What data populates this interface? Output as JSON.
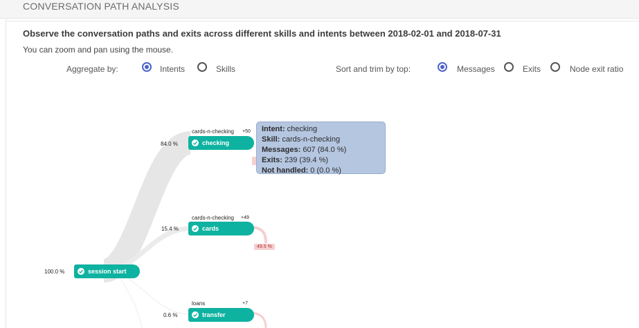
{
  "header": {
    "title": "CONVERSATION PATH ANALYSIS"
  },
  "description": "Observe the conversation paths and exits across different skills and intents between 2018-02-01 and 2018-07-31",
  "hint": "You can zoom and pan using the mouse.",
  "aggregate": {
    "label": "Aggregate by:",
    "options": [
      {
        "label": "Intents",
        "selected": true
      },
      {
        "label": "Skills",
        "selected": false
      }
    ]
  },
  "sort": {
    "label": "Sort and trim by top:",
    "options": [
      {
        "label": "Messages",
        "selected": true
      },
      {
        "label": "Exits",
        "selected": false
      },
      {
        "label": "Node exit ratio",
        "selected": false
      }
    ]
  },
  "flow": {
    "root": {
      "label": "session start",
      "percent": "100.0 %"
    },
    "nodes": [
      {
        "label": "checking",
        "skill": "cards-n-checking",
        "count": "+50",
        "percent": "84.0 %"
      },
      {
        "label": "cards",
        "skill": "cards-n-checking",
        "count": "+49",
        "percent": "15.4 %",
        "exit": "49.5 %"
      },
      {
        "label": "transfer",
        "skill": "loans",
        "count": "+7",
        "percent": "0.6 %"
      }
    ],
    "tooltip": {
      "intent_key": "Intent:",
      "intent_val": " checking",
      "skill_key": "Skill:",
      "skill_val": " cards-n-checking",
      "messages_key": "Messages:",
      "messages_val": " 607 (84.0 %)",
      "exits_key": "Exits:",
      "exits_val": " 239 (39.4 %)",
      "nothandled_key": "Not handled:",
      "nothandled_val": " 0 (0.0 %)"
    }
  },
  "colors": {
    "node": "#0eb2a0",
    "link": "#e6e6e6",
    "exit": "#f6cfcf",
    "radio": "#4c62c9",
    "tooltip": "#b5c6e1"
  }
}
